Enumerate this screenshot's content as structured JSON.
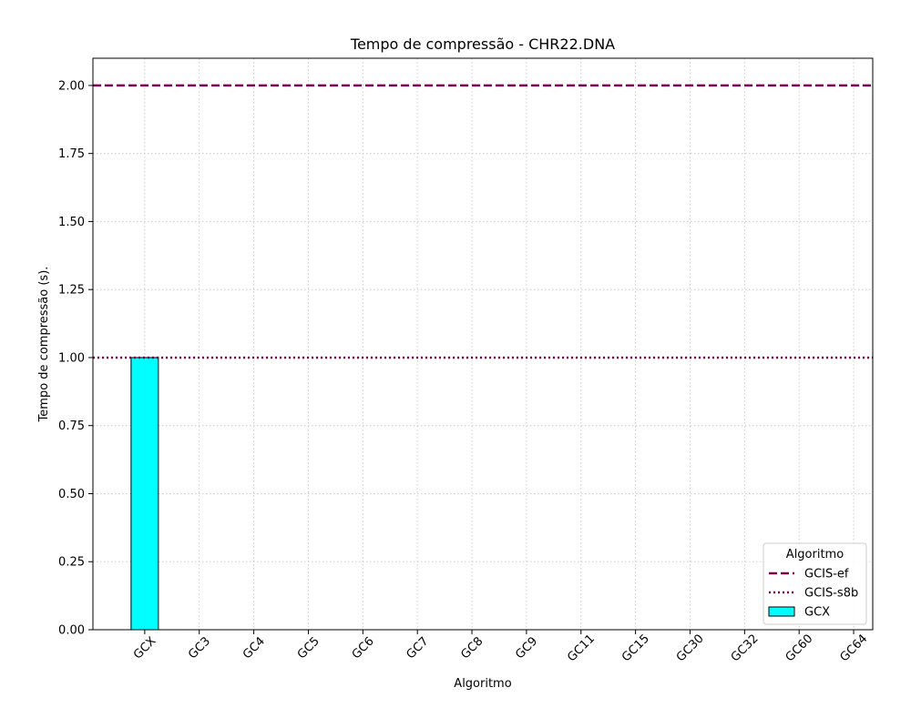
{
  "chart_data": {
    "type": "bar",
    "title": "Tempo de compressão -  CHR22.DNA",
    "xlabel": "Algoritmo",
    "ylabel": "Tempo de compressão (s).",
    "ylim": [
      0,
      2.1
    ],
    "yticks": [
      "0.00",
      "0.25",
      "0.50",
      "0.75",
      "1.00",
      "1.25",
      "1.50",
      "1.75",
      "2.00"
    ],
    "categories": [
      "GCX",
      "GC3",
      "GC4",
      "GC5",
      "GC6",
      "GC7",
      "GC8",
      "GC9",
      "GC11",
      "GC15",
      "GC30",
      "GC32",
      "GC60",
      "GC64"
    ],
    "series": [
      {
        "name": "GCX",
        "values": [
          1.0,
          0,
          0,
          0,
          0,
          0,
          0,
          0,
          0,
          0,
          0,
          0,
          0,
          0
        ],
        "color": "#00ffff"
      }
    ],
    "reference_lines": [
      {
        "name": "GCIS-ef",
        "value": 2.0,
        "style": "dashed",
        "color": "#800050"
      },
      {
        "name": "GCIS-s8b",
        "value": 1.0,
        "style": "dotted",
        "color": "#800050"
      }
    ],
    "grid": true,
    "legend": {
      "title": "Algoritmo",
      "placement": "lower-right"
    }
  }
}
